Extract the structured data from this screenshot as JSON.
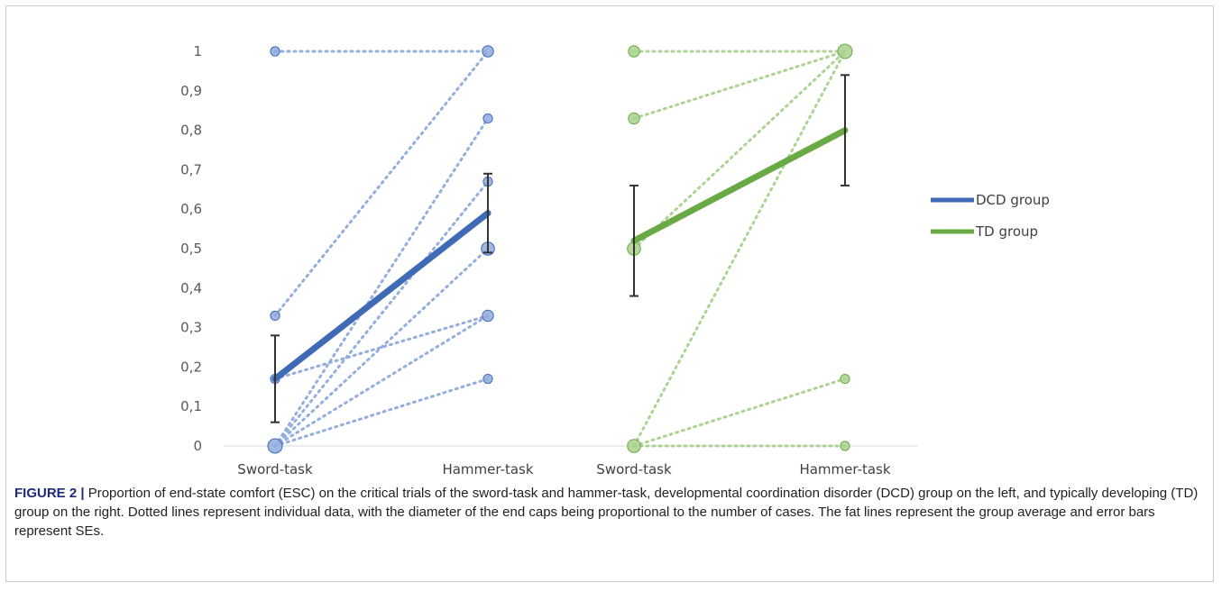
{
  "caption": {
    "label": "FIGURE 2 |",
    "text": "Proportion of end-state comfort (ESC) on the critical trials of the sword-task and hammer-task, developmental coordination disorder (DCD) group on the left, and typically developing (TD) group on the right. Dotted lines represent individual data, with the diameter of the end caps being proportional to the number of cases. The fat lines represent the group average and error bars represent SEs."
  },
  "chart_data": {
    "type": "line",
    "y_ticks": [
      "0",
      "0,1",
      "0,2",
      "0,3",
      "0,4",
      "0,5",
      "0,6",
      "0,7",
      "0,8",
      "0,9",
      "1"
    ],
    "ylim": [
      0,
      1
    ],
    "categories": [
      "Sword-task",
      "Hammer-task",
      "Sword-task",
      "Hammer-task"
    ],
    "legend_position": "right",
    "colors": {
      "dcd": "#3f6ab5",
      "dcd_light": "#8faadc",
      "td": "#6aaa45",
      "td_light": "#a9d18e",
      "error": "#333333"
    },
    "groups": [
      {
        "name": "DCD group",
        "color": "#3f6ab5",
        "light_color": "#8faadc",
        "mean": [
          0.17,
          0.59
        ],
        "error": [
          [
            0.06,
            0.28
          ],
          [
            0.49,
            0.69
          ]
        ],
        "individuals": [
          {
            "sword": 1.0,
            "hammer": 1.0,
            "n": 1
          },
          {
            "sword": 0.33,
            "hammer": 1.0,
            "n": 1
          },
          {
            "sword": 0.17,
            "hammer": 0.33,
            "n": 1
          },
          {
            "sword": 0.0,
            "hammer": 0.83,
            "n": 1
          },
          {
            "sword": 0.0,
            "hammer": 0.67,
            "n": 1
          },
          {
            "sword": 0.0,
            "hammer": 0.5,
            "n": 3
          },
          {
            "sword": 0.0,
            "hammer": 0.33,
            "n": 1
          },
          {
            "sword": 0.0,
            "hammer": 0.17,
            "n": 1
          }
        ]
      },
      {
        "name": "TD group",
        "color": "#6aaa45",
        "light_color": "#a9d18e",
        "mean": [
          0.52,
          0.8
        ],
        "error": [
          [
            0.38,
            0.66
          ],
          [
            0.66,
            0.94
          ]
        ],
        "individuals": [
          {
            "sword": 1.0,
            "hammer": 1.0,
            "n": 2
          },
          {
            "sword": 0.83,
            "hammer": 1.0,
            "n": 2
          },
          {
            "sword": 0.5,
            "hammer": 1.0,
            "n": 3
          },
          {
            "sword": 0.0,
            "hammer": 1.0,
            "n": 1
          },
          {
            "sword": 0.0,
            "hammer": 0.17,
            "n": 1
          },
          {
            "sword": 0.0,
            "hammer": 0.0,
            "n": 1
          }
        ]
      }
    ]
  }
}
